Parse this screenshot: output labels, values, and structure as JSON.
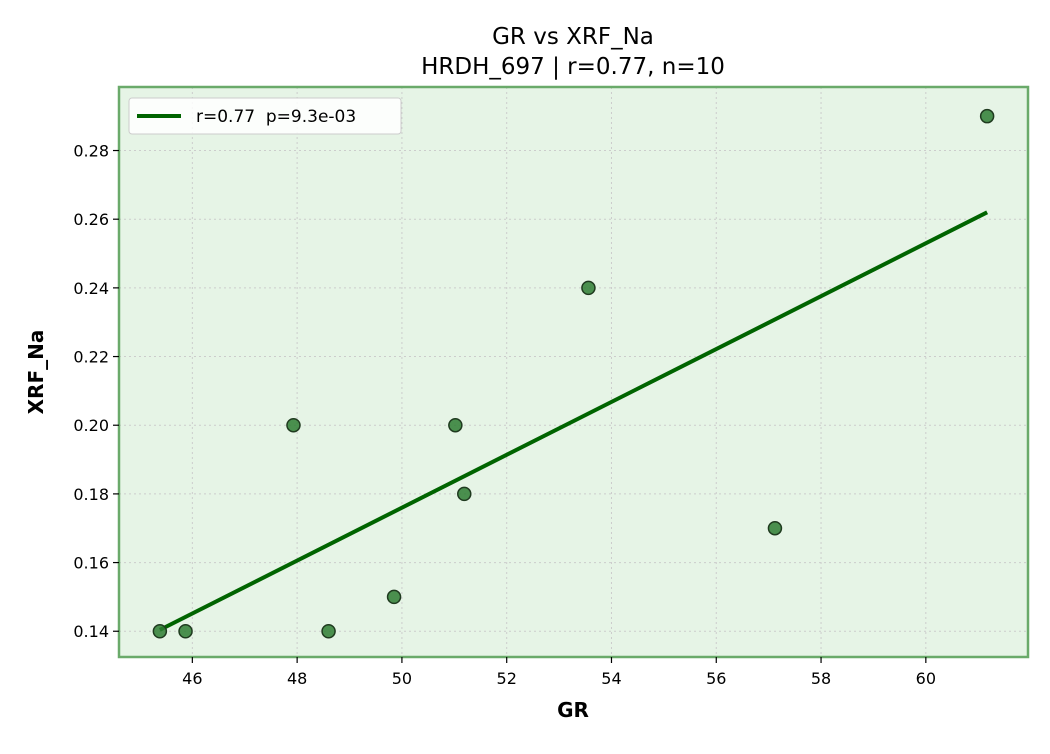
{
  "chart_data": {
    "type": "scatter",
    "title": "GR vs XRF_Na",
    "subtitle": "HRDH_697 | r=0.77, n=10",
    "xlabel": "GR",
    "ylabel": "XRF_Na",
    "xlim": [
      44.6,
      61.95
    ],
    "ylim": [
      0.1325,
      0.2985
    ],
    "x_ticks": [
      46,
      48,
      50,
      52,
      54,
      56,
      58,
      60
    ],
    "y_ticks": [
      0.14,
      0.16,
      0.18,
      0.2,
      0.22,
      0.24,
      0.26,
      0.28
    ],
    "y_tick_decimals": 2,
    "grid": true,
    "legend_position": "top-left",
    "series": [
      {
        "kind": "points",
        "x": [
          45.38,
          45.87,
          47.93,
          48.6,
          49.85,
          51.02,
          51.19,
          53.56,
          57.12,
          61.17
        ],
        "y": [
          0.14,
          0.14,
          0.2,
          0.14,
          0.15,
          0.2,
          0.18,
          0.24,
          0.17,
          0.29
        ],
        "color": "#2e7d32"
      },
      {
        "kind": "fit-line",
        "name": "r=0.77  p=9.3e-03",
        "x": [
          45.38,
          61.17
        ],
        "y": [
          0.1404,
          0.262
        ],
        "color": "#006400"
      }
    ],
    "colors": {
      "plot_background": "#e6f4e6",
      "plot_border": "#6aaa6a",
      "grid": "#cccccc",
      "marker_edge": "#1f3a1f"
    }
  }
}
